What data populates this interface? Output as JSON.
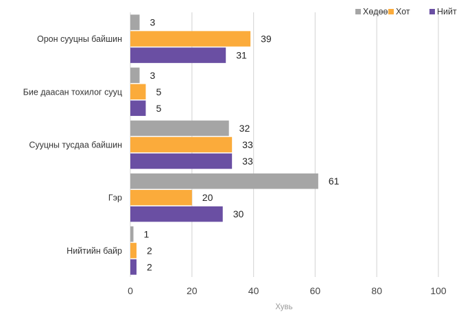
{
  "chart_data": {
    "type": "bar",
    "orientation": "horizontal",
    "categories": [
      "Орон сууцны байшин",
      "Бие даасан тохилог сууц",
      "Сууцны тусдаа байшин",
      "Гэр",
      "Нийтийн байр"
    ],
    "series": [
      {
        "name": "Хөдөө",
        "color": "#a5a5a5",
        "values": [
          3,
          3,
          32,
          61,
          1
        ]
      },
      {
        "name": "Хот",
        "color": "#fbab3b",
        "values": [
          39,
          5,
          33,
          20,
          2
        ]
      },
      {
        "name": "Нийт",
        "color": "#6a4fa3",
        "values": [
          31,
          5,
          33,
          30,
          2
        ]
      }
    ],
    "xlabel": "Хувь",
    "ylabel": "",
    "xlim": [
      0,
      100
    ],
    "xticks": [
      0,
      20,
      40,
      60,
      80,
      100
    ],
    "grid": "vertical",
    "legend_position": "top-right"
  }
}
